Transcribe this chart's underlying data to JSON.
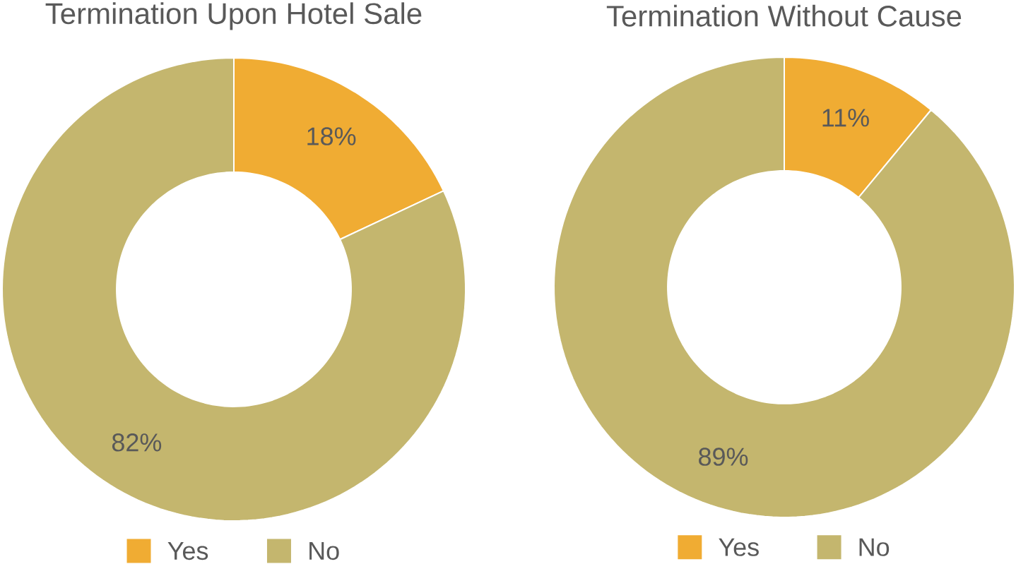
{
  "chart_data": [
    {
      "type": "donut",
      "title": "Termination Upon Hotel Sale",
      "categories": [
        "Yes",
        "No"
      ],
      "values": [
        18,
        82
      ],
      "colors": [
        "#f0ac33",
        "#c4b66e"
      ],
      "value_labels": [
        "18%",
        "82%"
      ],
      "legend": "bottom"
    },
    {
      "type": "donut",
      "title": "Termination Without Cause",
      "categories": [
        "Yes",
        "No"
      ],
      "values": [
        11,
        89
      ],
      "colors": [
        "#f0ac33",
        "#c4b66e"
      ],
      "value_labels": [
        "11%",
        "89%"
      ],
      "legend": "bottom"
    }
  ]
}
